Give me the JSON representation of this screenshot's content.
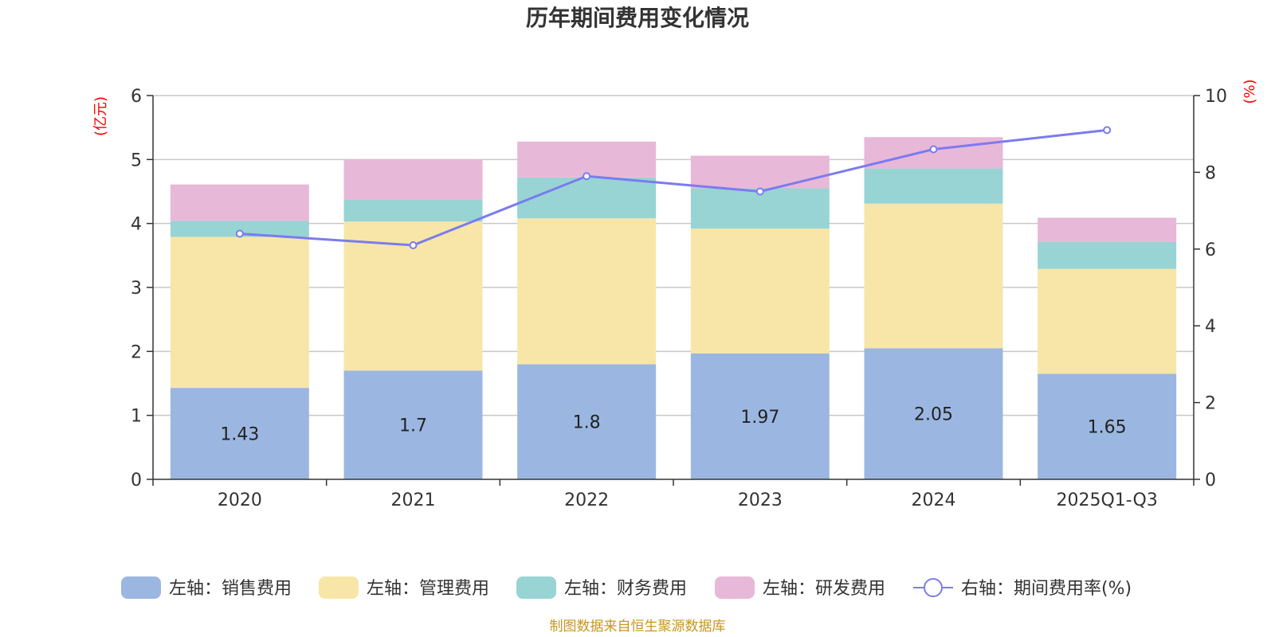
{
  "chart_data": {
    "type": "bar",
    "stacked": true,
    "title": "历年期间费用变化情况",
    "categories": [
      "2020",
      "2021",
      "2022",
      "2023",
      "2024",
      "2025Q1-Q3"
    ],
    "left_axis": {
      "unit": "(亿元)",
      "ylim": [
        0,
        6
      ],
      "ticks": [
        "0",
        "1",
        "2",
        "3",
        "4",
        "5",
        "6"
      ]
    },
    "right_axis": {
      "unit": "(%)",
      "ylim": [
        0,
        10
      ],
      "ticks": [
        "0",
        "2",
        "4",
        "6",
        "8",
        "10"
      ]
    },
    "series": [
      {
        "name": "左轴：销售费用",
        "axis": "left",
        "color": "#9bb7e1",
        "values": [
          1.43,
          1.7,
          1.8,
          1.97,
          2.05,
          1.65
        ],
        "labels": [
          "1.43",
          "1.7",
          "1.8",
          "1.97",
          "2.05",
          "1.65"
        ]
      },
      {
        "name": "左轴：管理费用",
        "axis": "left",
        "color": "#f7e6a8",
        "values": [
          2.36,
          2.33,
          2.28,
          1.95,
          2.26,
          1.64
        ]
      },
      {
        "name": "左轴：财务费用",
        "axis": "left",
        "color": "#98d4d4",
        "values": [
          0.25,
          0.34,
          0.64,
          0.63,
          0.55,
          0.42
        ]
      },
      {
        "name": "左轴：研发费用",
        "axis": "left",
        "color": "#e8b8d8",
        "values": [
          0.57,
          0.63,
          0.56,
          0.51,
          0.49,
          0.38
        ]
      },
      {
        "name": "右轴：期间费用率(%)",
        "axis": "right",
        "type": "line",
        "color": "#7b7bf0",
        "values": [
          6.4,
          6.1,
          7.9,
          7.5,
          8.6,
          9.1
        ]
      }
    ],
    "source": "制图数据来自恒生聚源数据库"
  }
}
